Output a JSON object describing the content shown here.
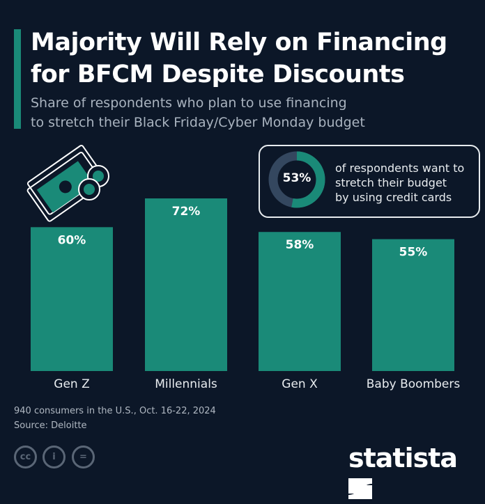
{
  "title_line1": "Majority Will Rely on Financing",
  "title_line2": "for BFCM Despite Discounts",
  "subtitle_line1": "Share of respondents who plan to use financing",
  "subtitle_line2": "to stretch their Black Friday/Cyber Monday budget",
  "callout": {
    "value": "53%",
    "fraction": 0.53,
    "line1": "of respondents want to",
    "line2": "stretch their budget",
    "line3": "by using credit cards"
  },
  "footnote": "940 consumers in the U.S., Oct. 16-22, 2024",
  "source": "Source: Deloitte",
  "logo": "statista",
  "license_icons": [
    "cc-icon",
    "attribution-icon",
    "no-derivatives-icon"
  ],
  "colors": {
    "background": "#0c1728",
    "bar": "#1a8a78",
    "donut_rest": "#34475f"
  },
  "chart_data": {
    "type": "bar",
    "categories": [
      "Gen Z",
      "Millennials",
      "Gen X",
      "Baby Boombers"
    ],
    "values": [
      60,
      72,
      58,
      55
    ],
    "data_labels": [
      "60%",
      "72%",
      "58%",
      "55%"
    ],
    "ylim": [
      0,
      100
    ],
    "grid": false
  }
}
